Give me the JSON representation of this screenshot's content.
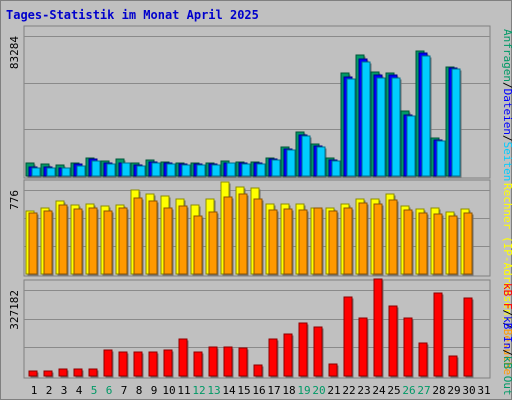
{
  "chart_data": {
    "type": "bar",
    "title": "Tages-Statistik im Monat April 2025",
    "categories": [
      "1",
      "2",
      "3",
      "4",
      "5",
      "6",
      "7",
      "8",
      "9",
      "10",
      "11",
      "12",
      "13",
      "14",
      "15",
      "16",
      "17",
      "18",
      "19",
      "20",
      "21",
      "22",
      "23",
      "24",
      "25",
      "26",
      "27",
      "28",
      "29",
      "30",
      "31"
    ],
    "weekend_days": [
      "5",
      "6",
      "12",
      "13",
      "19",
      "20",
      "26",
      "27"
    ],
    "colors": {
      "background": "#c0c0c0",
      "frame": "#808080",
      "title": "#0000cc",
      "anfragen": "#009966",
      "dateien": "#00ccff",
      "rechner": "#ffff00",
      "besuche": "#ff9900",
      "kb_f": "#ff0000",
      "kb_in": "#0000ff",
      "kb_out": "#009966",
      "weekend_label": "#009966",
      "weekday_label": "#000000"
    },
    "panels": [
      {
        "ymax_label": "83284",
        "ymax": 83284,
        "legend": [
          {
            "text": "Anfragen",
            "color": "#009966"
          },
          {
            "text": "/",
            "color": "#000000"
          },
          {
            "text": "Dateien",
            "color": "#0000ff"
          },
          {
            "text": "/",
            "color": "#000000"
          },
          {
            "text": "Seiten",
            "color": "#00ccff"
          }
        ],
        "series": [
          {
            "name": "Anfragen",
            "values": [
              7500,
              7000,
              6500,
              8000,
              11000,
              9000,
              10000,
              8000,
              9500,
              8500,
              8000,
              8000,
              8000,
              9000,
              8500,
              8500,
              10500,
              17500,
              26000,
              19000,
              10500,
              61500,
              72000,
              62000,
              61000,
              38500,
              74500,
              22500,
              65000,
              0,
              0
            ]
          },
          {
            "name": "Dateien",
            "values": [
              5500,
              5500,
              5000,
              7000,
              10000,
              7500,
              8000,
              6500,
              8500,
              7500,
              7000,
              7000,
              7000,
              8000,
              7500,
              7500,
              10000,
              16000,
              24500,
              18000,
              9500,
              59000,
              69500,
              60000,
              60000,
              36500,
              73000,
              21500,
              64500,
              0,
              0
            ]
          },
          {
            "name": "Seiten",
            "values": [
              4500,
              4500,
              4500,
              6000,
              9000,
              7000,
              7500,
              6000,
              8000,
              7000,
              6500,
              6500,
              6500,
              7500,
              7000,
              7000,
              9500,
              15500,
              24000,
              17500,
              9000,
              57500,
              68000,
              58500,
              58500,
              35500,
              71500,
              21000,
              63500,
              0,
              0
            ]
          }
        ]
      },
      {
        "ymax_label": "776",
        "ymax": 776,
        "legend": [
          {
            "text": "Rechner (IP-Adressen)",
            "color": "#ffff00"
          },
          {
            "text": "/",
            "color": "#000000"
          },
          {
            "text": "Besuche",
            "color": "#ff9900"
          }
        ],
        "series": [
          {
            "name": "Rechner (IP-Adressen)",
            "values": [
              580,
              610,
              670,
              640,
              650,
              630,
              640,
              780,
              740,
              720,
              690,
              640,
              690,
              850,
              800,
              790,
              650,
              650,
              650,
              610,
              610,
              650,
              690,
              690,
              740,
              630,
              600,
              610,
              570,
              600,
              0
            ]
          },
          {
            "name": "Besuche",
            "values": [
              560,
              580,
              640,
              600,
              610,
              580,
              610,
              700,
              670,
              610,
              630,
              540,
              570,
              710,
              740,
              690,
              590,
              600,
              590,
              610,
              580,
              610,
              660,
              650,
              680,
              590,
              560,
              550,
              540,
              560,
              0
            ]
          }
        ]
      },
      {
        "ymax_label": "327182",
        "ymax": 327182,
        "legend": [
          {
            "text": "kB F",
            "color": "#ff0000"
          },
          {
            "text": "/",
            "color": "#000000"
          },
          {
            "text": "kB In",
            "color": "#0000ff"
          },
          {
            "text": "/",
            "color": "#000000"
          },
          {
            "text": "kB Out",
            "color": "#009966"
          }
        ],
        "series": [
          {
            "name": "kB F",
            "values": [
              20000,
              20000,
              25000,
              25000,
              25000,
              100000,
              90000,
              90000,
              90000,
              100000,
              140000,
              90000,
              110000,
              110000,
              105000,
              40000,
              140000,
              160000,
              200000,
              185000,
              45000,
              300000,
              220000,
              370000,
              265000,
              220000,
              125000,
              315000,
              75000,
              295000,
              0
            ]
          }
        ]
      }
    ]
  }
}
